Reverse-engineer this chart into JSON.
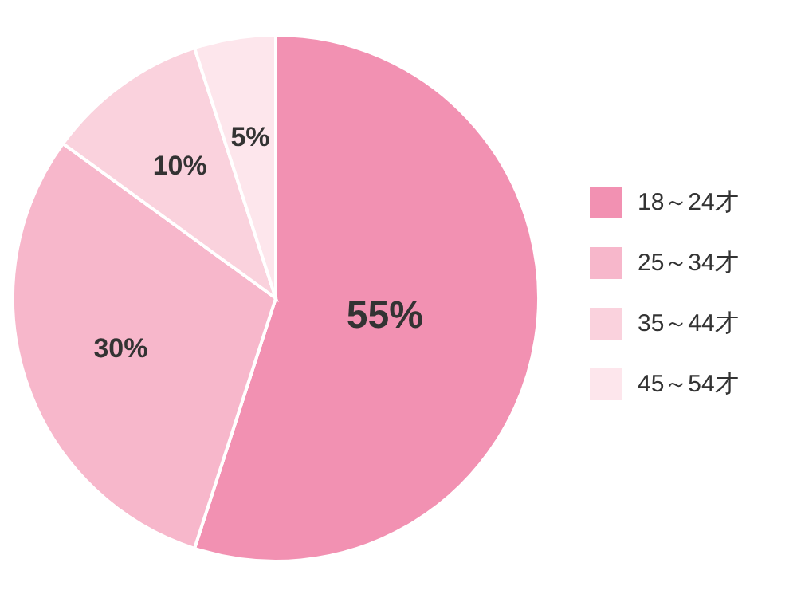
{
  "chart_data": {
    "type": "pie",
    "categories": [
      "18～24才",
      "25～34才",
      "35～44才",
      "45～54才"
    ],
    "values": [
      55,
      30,
      10,
      5
    ],
    "colors": [
      "#f291b2",
      "#f7b7cb",
      "#fad2dd",
      "#fde6ec"
    ],
    "value_labels": [
      "55%",
      "30%",
      "10%",
      "5%"
    ],
    "legend": "right"
  }
}
